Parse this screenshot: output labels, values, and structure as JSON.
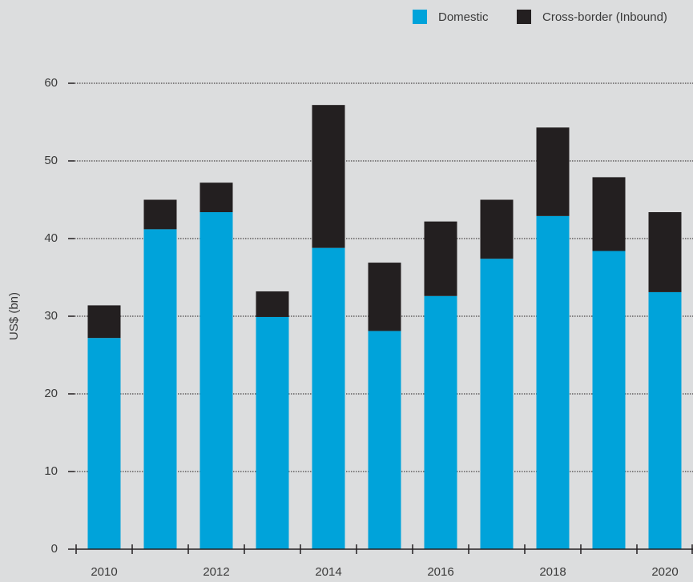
{
  "chart_data": {
    "type": "stacked_bar",
    "y_label": "US$ (bn)",
    "categories": [
      "2010",
      null,
      "2012",
      null,
      "2014",
      null,
      "2016",
      null,
      "2018",
      null,
      "2020"
    ],
    "series": [
      {
        "name": "Domestic",
        "color": "#00a3da",
        "values": [
          27.2,
          41.2,
          43.4,
          29.9,
          38.8,
          28.1,
          32.6,
          37.4,
          42.9,
          38.4,
          33.1
        ]
      },
      {
        "name": "Cross-border (Inbound)",
        "color": "#231f20",
        "values": [
          4.2,
          3.8,
          3.8,
          3.3,
          18.4,
          8.8,
          9.6,
          7.6,
          11.4,
          9.5,
          10.3
        ]
      }
    ],
    "ylim": [
      0,
      60
    ],
    "yticks": [
      0,
      10,
      20,
      30,
      40,
      50,
      60
    ],
    "grid": true,
    "legend": "top-right"
  }
}
